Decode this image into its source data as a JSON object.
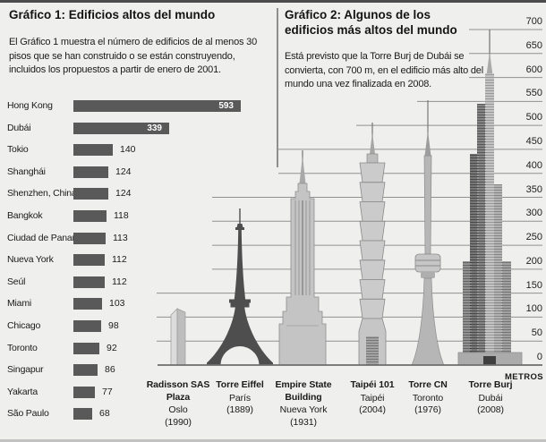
{
  "chart_data": [
    {
      "type": "bar",
      "orientation": "horizontal",
      "title": "Gráfico 1: Edificios altos del mundo",
      "description": "El Gráfico 1 muestra el número de edificios de al menos 30 pisos que se han construido o se están construyendo, incluidos los propuestos a partir de enero de 2001.",
      "categories": [
        "Hong Kong",
        "Dubái",
        "Tokio",
        "Shanghái",
        "Shenzhen, China",
        "Bangkok",
        "Ciudad de Panamá",
        "Nueva York",
        "Seúl",
        "Miami",
        "Chicago",
        "Toronto",
        "Singapur",
        "Yakarta",
        "São Paulo"
      ],
      "values": [
        593,
        339,
        140,
        124,
        124,
        118,
        113,
        112,
        112,
        103,
        98,
        92,
        86,
        77,
        68
      ],
      "xlim": [
        0,
        593
      ],
      "bar_color": "#595959",
      "value_label_style": "values >= 300 printed in white inside the bar, others in black at bar end",
      "grid": false
    },
    {
      "type": "pictorial-bar",
      "title": "Gráfico 2: Algunos de los edificios más altos del mundo",
      "description": "Está previsto que la Torre Burj de Dubái se convierta, con 700 m, en el edificio más alto del mundo una vez finalizada en 2008.",
      "ylabel": "METROS",
      "ylim": [
        0,
        700
      ],
      "yticks": [
        700,
        650,
        600,
        550,
        500,
        450,
        400,
        350,
        300,
        250,
        200,
        150,
        100,
        50,
        0
      ],
      "grid": true,
      "legend_position": "none",
      "buildings": [
        {
          "name": "Radisson SAS Plaza",
          "city": "Oslo",
          "year": "(1990)",
          "approx_height_m": 117
        },
        {
          "name": "Torre Eiffel",
          "city": "París",
          "year": "(1889)",
          "approx_height_m": 324
        },
        {
          "name": "Empire State Building",
          "city": "Nueva York",
          "year": "(1931)",
          "approx_height_m": 443
        },
        {
          "name": "Taipéi 101",
          "city": "Taipéi",
          "year": "(2004)",
          "approx_height_m": 508
        },
        {
          "name": "Torre CN",
          "city": "Toronto",
          "year": "(1976)",
          "approx_height_m": 553
        },
        {
          "name": "Torre Burj",
          "city": "Dubái",
          "year": "(2008)",
          "approx_height_m": 700
        }
      ]
    }
  ]
}
